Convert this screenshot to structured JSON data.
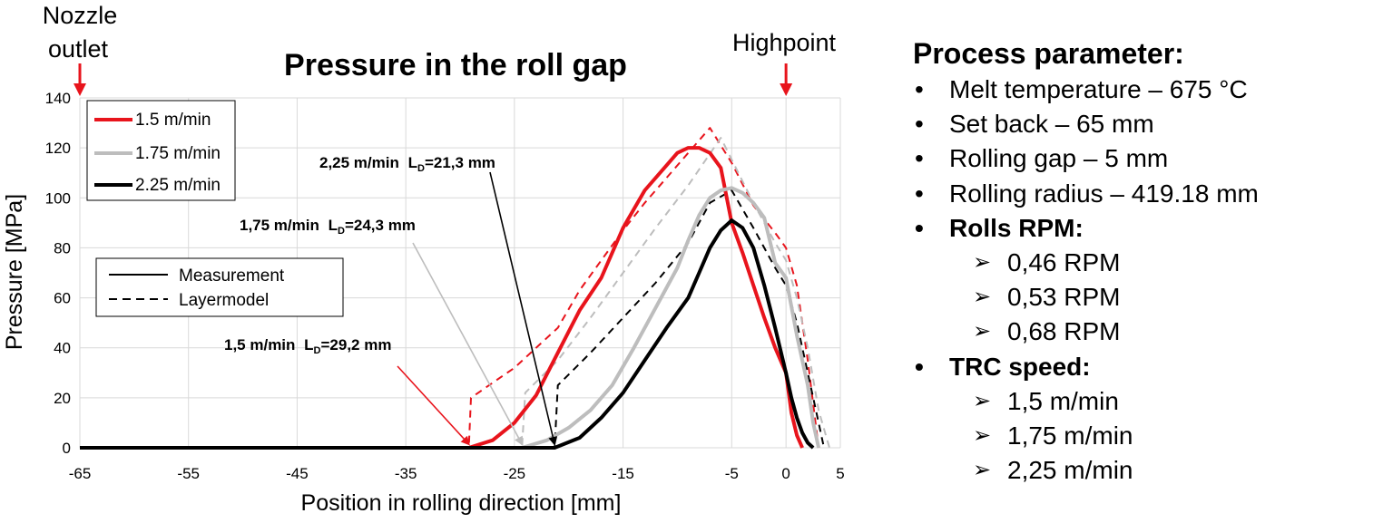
{
  "chart_data": {
    "type": "line",
    "title": "Pressure in the roll gap",
    "xlabel": "Position in rolling direction [mm]",
    "ylabel": "Pressure [MPa]",
    "xlim": [
      -65,
      5
    ],
    "ylim": [
      0,
      140
    ],
    "xticks": [
      -65,
      -55,
      -45,
      -35,
      -25,
      -15,
      -5,
      0,
      5
    ],
    "yticks": [
      0,
      20,
      40,
      60,
      80,
      100,
      120,
      140
    ],
    "grid": true,
    "legend_speed": {
      "placement": "top-left",
      "entries": [
        {
          "label": "1.5 m/min",
          "color": "#e8141c"
        },
        {
          "label": "1.75 m/min",
          "color": "#bdbdbd"
        },
        {
          "label": "2.25 m/min",
          "color": "#000000"
        }
      ]
    },
    "legend_style": {
      "placement": "center-left",
      "entries": [
        {
          "label": "Measurement",
          "style": "solid"
        },
        {
          "label": "Layermodel",
          "style": "dashed"
        }
      ]
    },
    "markers": [
      {
        "label_lines": [
          "Nozzle",
          "outlet"
        ],
        "x": -65,
        "color": "#e8141c"
      },
      {
        "label_lines": [
          "Highpoint"
        ],
        "x": 0,
        "color": "#e8141c"
      }
    ],
    "annotations": [
      {
        "speed": "2,25 m/min",
        "ld_label": "L",
        "ld_sub": "D",
        "ld_value": "=21,3 mm",
        "x": -21.3,
        "color": "#000000"
      },
      {
        "speed": "1,75 m/min",
        "ld_label": "L",
        "ld_sub": "D",
        "ld_value": "=24,3 mm",
        "x": -24.3,
        "color": "#bdbdbd"
      },
      {
        "speed": "1,5 m/min",
        "ld_label": "L",
        "ld_sub": "D",
        "ld_value": "=29,2 mm",
        "x": -29.2,
        "color": "#e8141c"
      }
    ],
    "series": [
      {
        "name": "1.5 m/min",
        "kind": "measurement",
        "color": "#e8141c",
        "x": [
          -65,
          -30,
          -29.2,
          -27,
          -25,
          -23,
          -21,
          -19,
          -17,
          -15,
          -13,
          -11,
          -10,
          -9,
          -8,
          -7,
          -6,
          -5,
          -4,
          -3,
          -2,
          -1,
          0,
          0.5,
          1,
          1.5
        ],
        "y": [
          0,
          0,
          0,
          3,
          10,
          21,
          38,
          55,
          68,
          88,
          103,
          113,
          118,
          120,
          120,
          118,
          112,
          90,
          78,
          65,
          52,
          40,
          30,
          14,
          5,
          0
        ]
      },
      {
        "name": "1.75 m/min",
        "kind": "measurement",
        "color": "#bdbdbd",
        "x": [
          -65,
          -25,
          -24.3,
          -22,
          -20,
          -18,
          -16,
          -14,
          -12,
          -10,
          -9,
          -8,
          -7,
          -6,
          -5,
          -4,
          -3,
          -2,
          -1,
          0,
          1,
          2,
          2.5,
          3
        ],
        "y": [
          0,
          0,
          0,
          3,
          8,
          15,
          25,
          40,
          56,
          72,
          83,
          93,
          100,
          103,
          104,
          102,
          98,
          92,
          74,
          68,
          45,
          25,
          10,
          0
        ]
      },
      {
        "name": "2.25 m/min",
        "kind": "measurement",
        "color": "#000000",
        "x": [
          -65,
          -22,
          -21.3,
          -19,
          -17,
          -15,
          -13,
          -11,
          -9,
          -8,
          -7,
          -6,
          -5,
          -4,
          -3,
          -2,
          -1,
          0,
          0.5,
          1,
          1.5,
          2,
          2.5
        ],
        "y": [
          0,
          0,
          0,
          4,
          12,
          22,
          35,
          48,
          60,
          70,
          80,
          87,
          91,
          88,
          80,
          65,
          48,
          30,
          20,
          12,
          6,
          2,
          0
        ]
      },
      {
        "name": "1.5 m/min",
        "kind": "layermodel",
        "color": "#e8141c",
        "x": [
          -65,
          -30,
          -29.2,
          -29,
          -27,
          -25,
          -23,
          -21,
          -19,
          -17,
          -15,
          -13,
          -11,
          -9,
          -7,
          -5,
          -3,
          -1,
          0,
          1,
          2,
          3
        ],
        "y": [
          0,
          0,
          0,
          20,
          26,
          32,
          40,
          48,
          63,
          75,
          87,
          98,
          108,
          118,
          128,
          114,
          97,
          86,
          80,
          65,
          35,
          0
        ]
      },
      {
        "name": "1.75 m/min",
        "kind": "layermodel",
        "color": "#bdbdbd",
        "x": [
          -65,
          -25,
          -24.3,
          -24,
          -21,
          -18,
          -15,
          -12,
          -9,
          -6,
          -3,
          -1,
          0,
          1,
          2,
          3,
          4
        ],
        "y": [
          0,
          0,
          0,
          22,
          35,
          52,
          70,
          88,
          105,
          124,
          98,
          82,
          75,
          60,
          40,
          15,
          0
        ]
      },
      {
        "name": "2.25 m/min",
        "kind": "layermodel",
        "color": "#000000",
        "x": [
          -65,
          -22,
          -21.3,
          -21,
          -18,
          -15,
          -12,
          -9,
          -7,
          -5,
          -3,
          -1,
          0,
          1,
          2,
          3,
          3.5
        ],
        "y": [
          0,
          0,
          0,
          25,
          38,
          52,
          66,
          82,
          98,
          103,
          88,
          72,
          65,
          50,
          30,
          10,
          0
        ]
      }
    ]
  },
  "process": {
    "title": "Process parameter:",
    "items": [
      {
        "text": "Melt temperature – 675 °C",
        "bold": false,
        "level": 1
      },
      {
        "text": "Set back – 65 mm",
        "bold": false,
        "level": 1
      },
      {
        "text": "Rolling gap – 5 mm",
        "bold": false,
        "level": 1
      },
      {
        "text": "Rolling radius – 419.18 mm",
        "bold": false,
        "level": 1
      },
      {
        "text": "Rolls RPM:",
        "bold": true,
        "level": 1
      },
      {
        "text": "0,46 RPM",
        "bold": false,
        "level": 2
      },
      {
        "text": "0,53 RPM",
        "bold": false,
        "level": 2
      },
      {
        "text": "0,68 RPM",
        "bold": false,
        "level": 2
      },
      {
        "text": "TRC speed:",
        "bold": true,
        "level": 1
      },
      {
        "text": "1,5 m/min",
        "bold": false,
        "level": 2
      },
      {
        "text": "1,75 m/min",
        "bold": false,
        "level": 2
      },
      {
        "text": "2,25 m/min",
        "bold": false,
        "level": 2
      }
    ],
    "bullet_char": "•",
    "arrow_char": "➢"
  }
}
